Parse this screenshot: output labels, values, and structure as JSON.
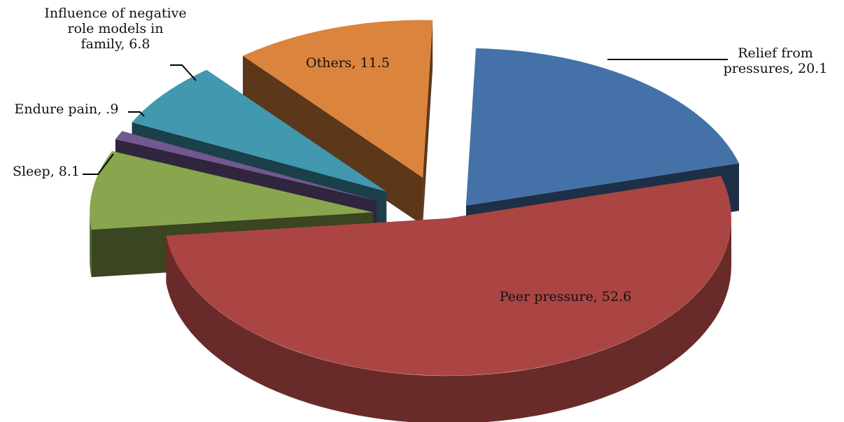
{
  "chart_data": {
    "type": "pie",
    "style": "3d-exploded",
    "title": "",
    "grid": false,
    "legend": "none",
    "slices": [
      {
        "label": "Relief from pressures",
        "value": 20.1,
        "display": "20.1",
        "color": "#4472a8"
      },
      {
        "label": "Peer pressure",
        "value": 52.6,
        "display": "52.6",
        "color": "#aa4543"
      },
      {
        "label": "Sleep",
        "value": 8.1,
        "display": "8.1",
        "color": "#89a54e"
      },
      {
        "label": "Endure pain",
        "value": 0.9,
        "display": ".9",
        "color": "#71588f"
      },
      {
        "label": "Influence of negative role models in family",
        "value": 6.8,
        "display": "6.8",
        "color": "#4198af"
      },
      {
        "label": "Others",
        "value": 11.5,
        "display": "11.5",
        "color": "#db843d"
      }
    ],
    "data_labels": [
      {
        "lines": [
          "Relief from",
          "pressures, 20.1"
        ]
      },
      {
        "lines": [
          "Peer pressure, 52.6"
        ]
      },
      {
        "lines": [
          "Sleep, 8.1"
        ]
      },
      {
        "lines": [
          "Endure pain, .9"
        ]
      },
      {
        "lines": [
          "Influence of negative",
          "role models in",
          "family, 6.8"
        ]
      },
      {
        "lines": [
          "Others, 11.5"
        ]
      }
    ]
  }
}
